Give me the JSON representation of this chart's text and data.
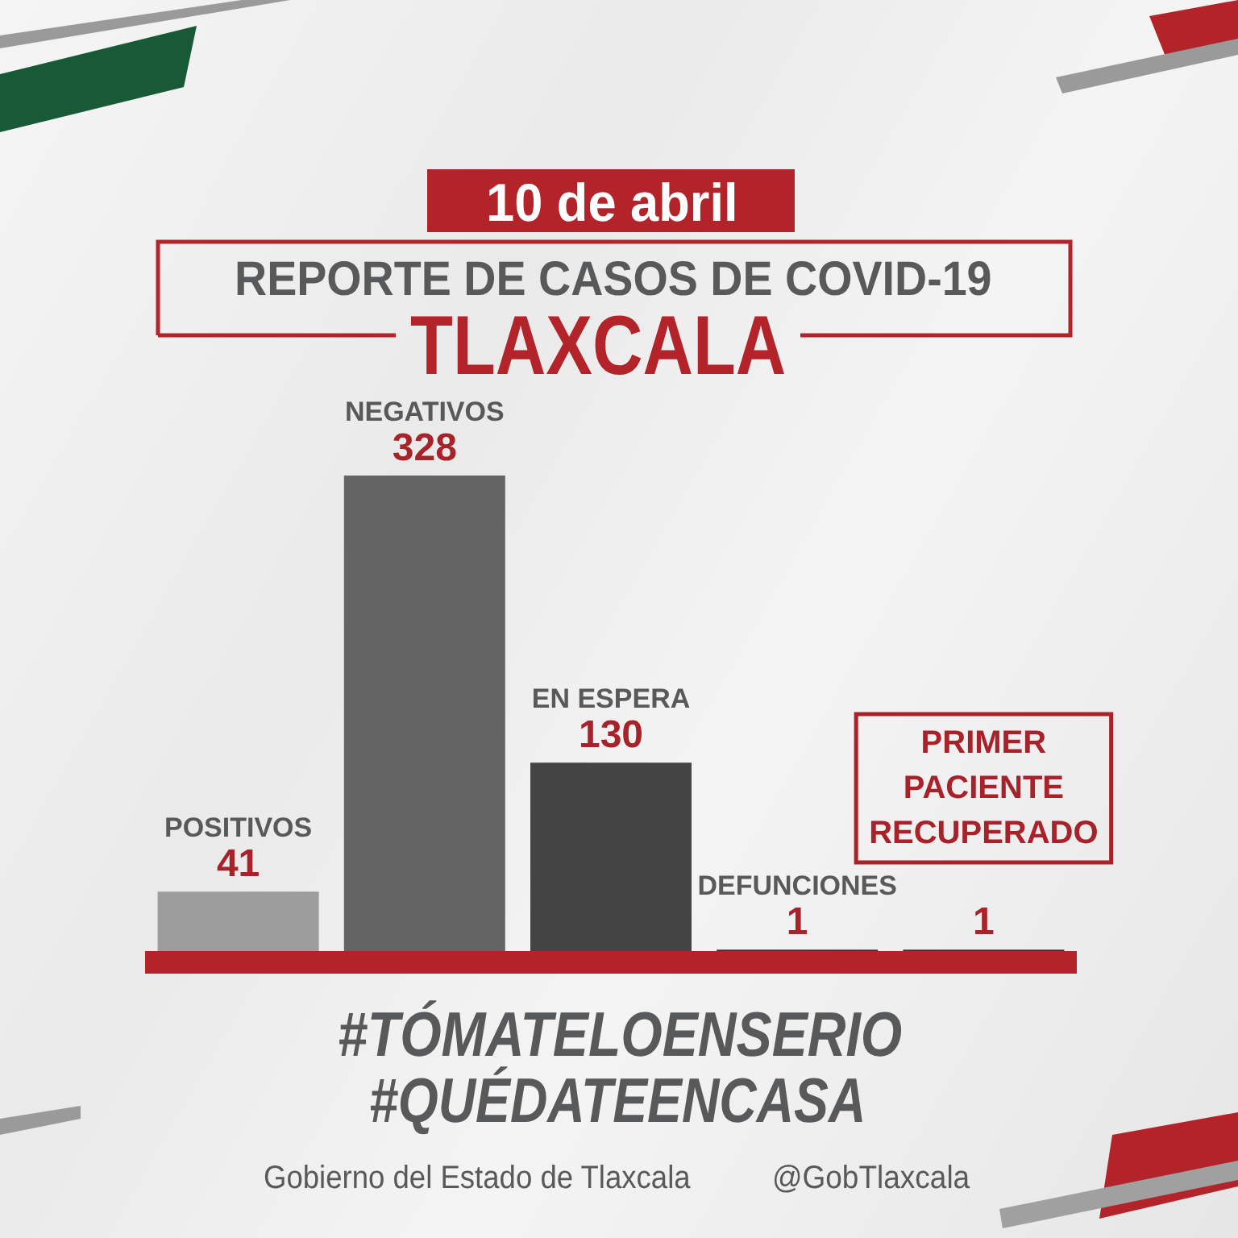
{
  "chart_data": {
    "type": "bar",
    "title": "REPORTE DE CASOS DE COVID-19",
    "subtitle": "TLAXCALA",
    "categories": [
      "POSITIVOS",
      "NEGATIVOS",
      "EN ESPERA",
      "DEFUNCIONES",
      "PRIMER PACIENTE RECUPERADO"
    ],
    "values": [
      41,
      328,
      130,
      1,
      1
    ],
    "colors": [
      "#9d9d9d",
      "#646464",
      "#444444",
      "#333333",
      "#333333"
    ],
    "data_labels": true,
    "annotations": [
      "10 de abril",
      "#TÓMATELOENSERIO",
      "#QUÉDATEENCASA",
      "Gobierno del Estado de Tlaxcala",
      "@GobTlaxcala"
    ]
  }
}
